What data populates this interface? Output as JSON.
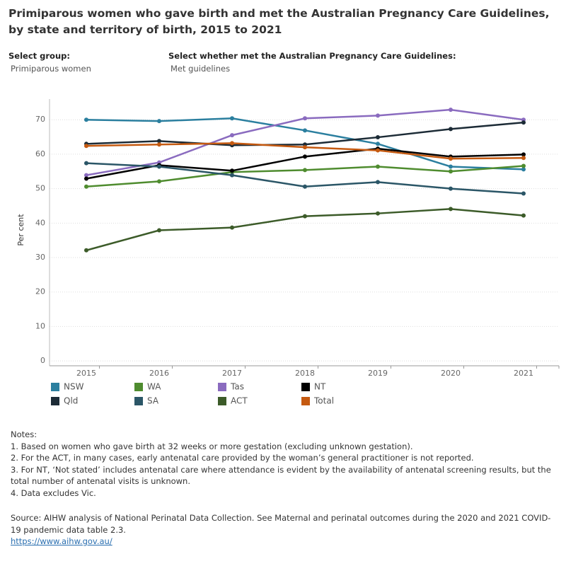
{
  "chart_data": {
    "type": "line",
    "title": "Primiparous women who gave birth and met the Australian Pregnancy Care Guidelines, by state and territory of birth, 2015 to 2021",
    "y_label": "Per cent",
    "categories": [
      "2015",
      "2016",
      "2017",
      "2018",
      "2019",
      "2020",
      "2021"
    ],
    "series": [
      {
        "name": "NSW",
        "color": "#2b7f9f",
        "values": [
          70.0,
          69.6,
          70.4,
          66.9,
          63.0,
          56.4,
          55.6
        ]
      },
      {
        "name": "WA",
        "color": "#4f8c2f",
        "values": [
          50.6,
          52.1,
          54.8,
          55.4,
          56.4,
          55.0,
          56.6
        ]
      },
      {
        "name": "Tas",
        "color": "#8a6bbf",
        "values": [
          53.9,
          57.6,
          65.5,
          70.4,
          71.2,
          72.9,
          70.0
        ]
      },
      {
        "name": "NT",
        "color": "#000000",
        "values": [
          52.9,
          56.8,
          55.2,
          59.3,
          61.6,
          59.3,
          59.9
        ]
      },
      {
        "name": "Qld",
        "color": "#1c2b36",
        "values": [
          63.0,
          63.8,
          62.6,
          62.8,
          64.9,
          67.3,
          69.2
        ]
      },
      {
        "name": "SA",
        "color": "#2b5667",
        "values": [
          57.4,
          56.4,
          53.9,
          50.6,
          51.9,
          50.0,
          48.6
        ]
      },
      {
        "name": "ACT",
        "color": "#3c5b29",
        "values": [
          32.1,
          37.9,
          38.7,
          42.0,
          42.8,
          44.1,
          42.2
        ]
      },
      {
        "name": "Total",
        "color": "#c55a11",
        "values": [
          62.4,
          62.8,
          63.2,
          62.0,
          61.1,
          58.7,
          58.9
        ]
      }
    ],
    "ylim": [
      -1,
      76
    ],
    "yticks": [
      0,
      10,
      20,
      30,
      40,
      50,
      60,
      70
    ],
    "grid": true
  },
  "filters": [
    {
      "label": "Select group:",
      "value": "Primiparous women"
    },
    {
      "label": "Select whether met the Australian Pregnancy Care Guidelines:",
      "value": "Met guidelines"
    }
  ],
  "notes": [
    "Notes:",
    "1. Based on women who gave birth at 32 weeks or more gestation (excluding unknown gestation).",
    "2. For the ACT, in many cases, early antenatal care provided by the woman’s general practitioner is not reported.",
    "3. For NT, ‘Not stated’ includes antenatal care where attendance is evident by the availability of antenatal screening results, but the total number of antenatal visits is unknown.",
    "4. Data excludes Vic."
  ],
  "source": {
    "text": "Source: AIHW analysis of National Perinatal Data Collection. See Maternal and perinatal outcomes during the 2020 and 2021 COVID-19 pandemic data table 2.3.",
    "link": "https://www.aihw.gov.au/"
  }
}
